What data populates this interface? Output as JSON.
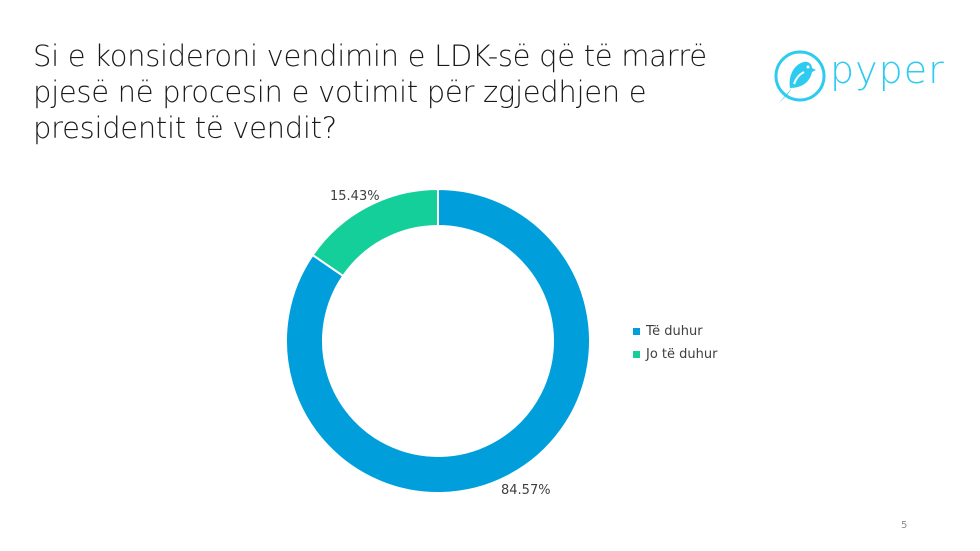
{
  "slide": {
    "title": "Si e konsideroni vendimin e LDK-së që të marrë pjesë në procesin e votimit për zgjedhjen e presidentit të vendit?",
    "page_number": "5"
  },
  "logo": {
    "text": "pyper",
    "icon": "bird-in-circle-icon",
    "color": "#2ecbf0"
  },
  "chart_data": {
    "type": "pie",
    "variant": "donut",
    "title": "Si e konsideroni vendimin e LDK-së që të marrë pjesë në procesin e votimit për zgjedhjen e presidentit të vendit?",
    "categories": [
      "Të duhur",
      "Jo të duhur"
    ],
    "values": [
      84.57,
      15.43
    ],
    "data_labels": [
      "84.57%",
      "15.43%"
    ],
    "colors": [
      "#009fdb",
      "#14cf9a"
    ],
    "legend_position": "right"
  },
  "legend": {
    "items": [
      {
        "label": "Të duhur",
        "color": "#009fdb"
      },
      {
        "label": "Jo të duhur",
        "color": "#14cf9a"
      }
    ]
  },
  "labels": {
    "slice0": "84.57%",
    "slice1": "15.43%"
  }
}
